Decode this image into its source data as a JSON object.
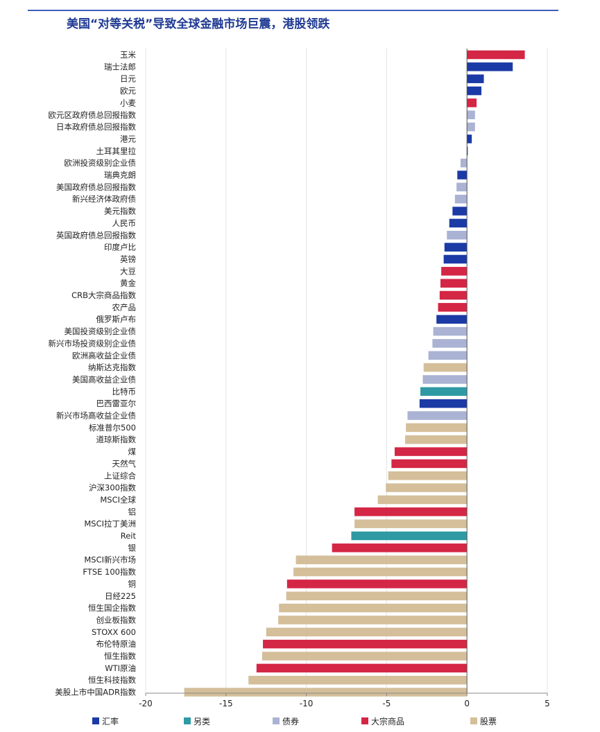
{
  "title": "美国“对等关税”导致全球金融市场巨震，港股领跌",
  "colors": {
    "汇率": "#1b3aa6",
    "另类": "#2f9aa4",
    "债券": "#aab3d3",
    "大宗商品": "#d42645",
    "股票": "#d4bf9a"
  },
  "chart_data": {
    "type": "bar",
    "orientation": "horizontal",
    "title": "美国“对等关税”导致全球金融市场巨震，港股领跌",
    "xlim": [
      -20,
      5
    ],
    "xticks": [
      "-20",
      "-15",
      "-10",
      "-5",
      "0",
      "5"
    ],
    "grid": true,
    "legend": [
      "汇率",
      "另类",
      "债券",
      "大宗商品",
      "股票"
    ],
    "legend_position": "bottom",
    "bars": [
      {
        "label": "玉米",
        "value": 3.6,
        "group": "大宗商品"
      },
      {
        "label": "瑞士法郎",
        "value": 2.85,
        "group": "汇率"
      },
      {
        "label": "日元",
        "value": 1.05,
        "group": "汇率"
      },
      {
        "label": "欧元",
        "value": 0.9,
        "group": "汇率"
      },
      {
        "label": "小麦",
        "value": 0.6,
        "group": "大宗商品"
      },
      {
        "label": "欧元区政府债总回报指数",
        "value": 0.5,
        "group": "债券"
      },
      {
        "label": "日本政府债总回报指数",
        "value": 0.5,
        "group": "债券"
      },
      {
        "label": "港元",
        "value": 0.3,
        "group": "汇率"
      },
      {
        "label": "土耳其里拉",
        "value": 0.05,
        "group": "汇率"
      },
      {
        "label": "欧洲投资级别企业债",
        "value": -0.4,
        "group": "债券"
      },
      {
        "label": "瑞典克朗",
        "value": -0.6,
        "group": "汇率"
      },
      {
        "label": "美国政府债总回报指数",
        "value": -0.65,
        "group": "债券"
      },
      {
        "label": "新兴经济体政府债",
        "value": -0.75,
        "group": "债券"
      },
      {
        "label": "美元指数",
        "value": -0.9,
        "group": "汇率"
      },
      {
        "label": "人民币",
        "value": -1.1,
        "group": "汇率"
      },
      {
        "label": "英国政府债总回报指数",
        "value": -1.25,
        "group": "债券"
      },
      {
        "label": "印度卢比",
        "value": -1.4,
        "group": "汇率"
      },
      {
        "label": "英镑",
        "value": -1.45,
        "group": "汇率"
      },
      {
        "label": "大豆",
        "value": -1.6,
        "group": "大宗商品"
      },
      {
        "label": "黄金",
        "value": -1.65,
        "group": "大宗商品"
      },
      {
        "label": "CRB大宗商品指数",
        "value": -1.7,
        "group": "大宗商品"
      },
      {
        "label": "农产品",
        "value": -1.8,
        "group": "大宗商品"
      },
      {
        "label": "俄罗斯卢布",
        "value": -1.9,
        "group": "汇率"
      },
      {
        "label": "美国投资级别企业债",
        "value": -2.1,
        "group": "债券"
      },
      {
        "label": "新兴市场投资级别企业债",
        "value": -2.15,
        "group": "债券"
      },
      {
        "label": "欧洲高收益企业债",
        "value": -2.4,
        "group": "债券"
      },
      {
        "label": "纳斯达克指数",
        "value": -2.7,
        "group": "股票"
      },
      {
        "label": "美国高收益企业债",
        "value": -2.75,
        "group": "债券"
      },
      {
        "label": "比特币",
        "value": -2.9,
        "group": "另类"
      },
      {
        "label": "巴西雷亚尔",
        "value": -2.95,
        "group": "汇率"
      },
      {
        "label": "新兴市场高收益企业债",
        "value": -3.7,
        "group": "债券"
      },
      {
        "label": "标准普尔500",
        "value": -3.8,
        "group": "股票"
      },
      {
        "label": "道琼斯指数",
        "value": -3.85,
        "group": "股票"
      },
      {
        "label": "煤",
        "value": -4.5,
        "group": "大宗商品"
      },
      {
        "label": "天然气",
        "value": -4.7,
        "group": "大宗商品"
      },
      {
        "label": "上证综合",
        "value": -4.9,
        "group": "股票"
      },
      {
        "label": "沪深300指数",
        "value": -5.05,
        "group": "股票"
      },
      {
        "label": "MSCI全球",
        "value": -5.55,
        "group": "股票"
      },
      {
        "label": "铝",
        "value": -7.0,
        "group": "大宗商品"
      },
      {
        "label": "MSCI拉丁美洲",
        "value": -7.0,
        "group": "股票"
      },
      {
        "label": "Reit",
        "value": -7.2,
        "group": "另类"
      },
      {
        "label": "银",
        "value": -8.4,
        "group": "大宗商品"
      },
      {
        "label": "MSCI新兴市场",
        "value": -10.65,
        "group": "股票"
      },
      {
        "label": "FTSE 100指数",
        "value": -10.8,
        "group": "股票"
      },
      {
        "label": "铜",
        "value": -11.2,
        "group": "大宗商品"
      },
      {
        "label": "日经225",
        "value": -11.25,
        "group": "股票"
      },
      {
        "label": "恒生国企指数",
        "value": -11.7,
        "group": "股票"
      },
      {
        "label": "创业板指数",
        "value": -11.75,
        "group": "股票"
      },
      {
        "label": "STOXX 600",
        "value": -12.5,
        "group": "股票"
      },
      {
        "label": "布伦特原油",
        "value": -12.7,
        "group": "大宗商品"
      },
      {
        "label": "恒生指数",
        "value": -12.75,
        "group": "股票"
      },
      {
        "label": "WTI原油",
        "value": -13.1,
        "group": "大宗商品"
      },
      {
        "label": "恒生科技指数",
        "value": -13.6,
        "group": "股票"
      },
      {
        "label": "美股上市中国ADR指数",
        "value": -17.6,
        "group": "股票"
      }
    ]
  }
}
